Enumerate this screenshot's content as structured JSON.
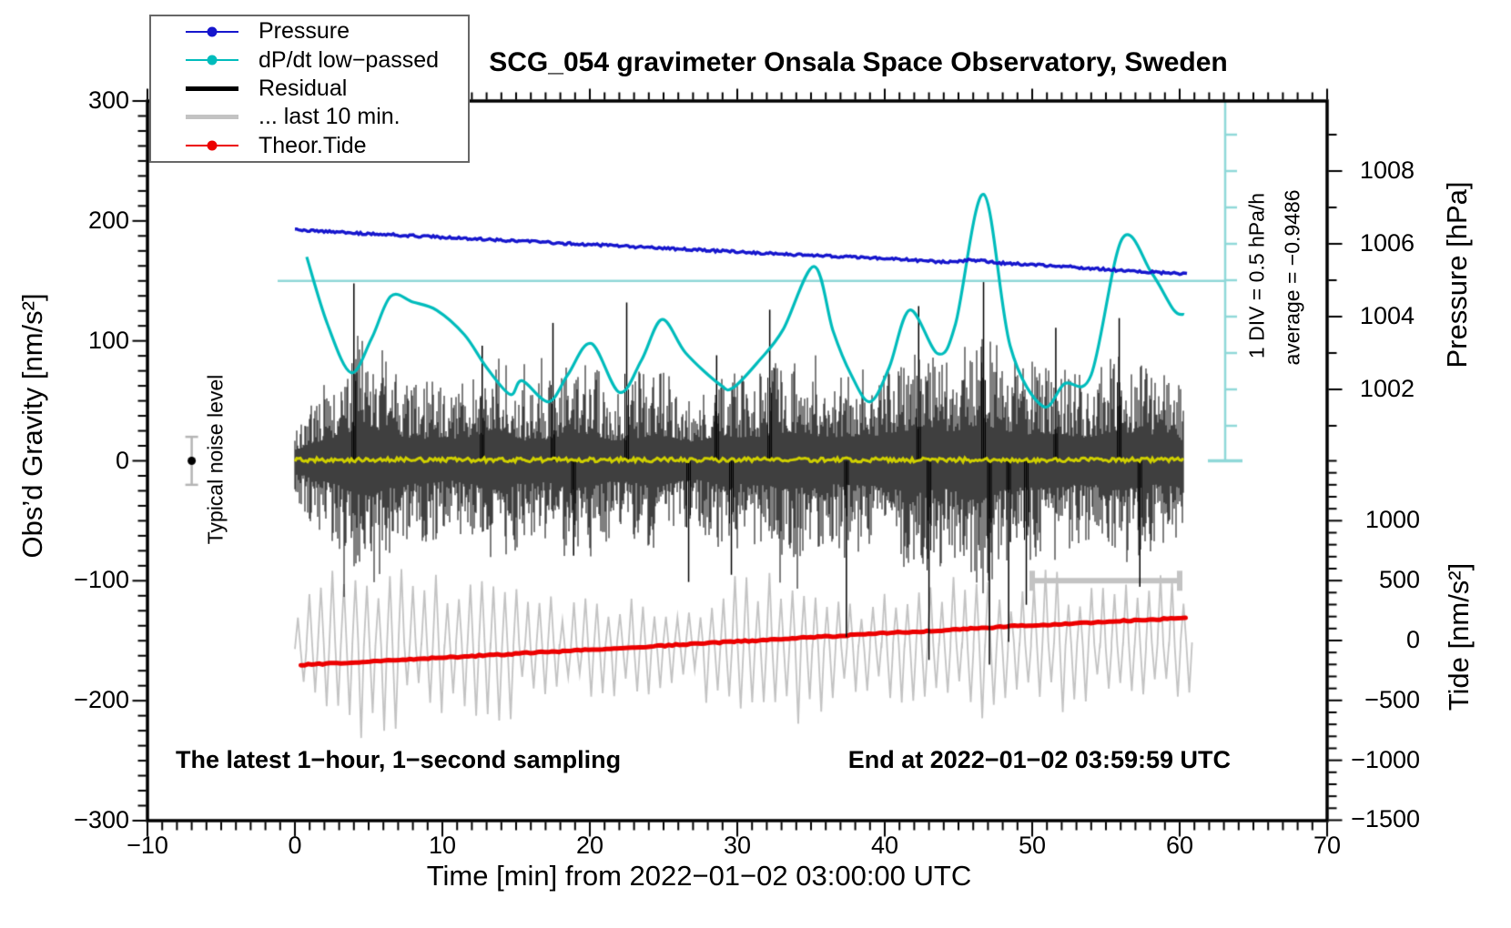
{
  "title": "SCG_054 gravimeter Onsala Space Observatory, Sweden",
  "axes": {
    "x": {
      "label": "Time [min] from 2022−01−02 03:00:00 UTC",
      "range": [
        -10,
        70
      ],
      "tick_values": [
        -10,
        0,
        10,
        20,
        30,
        40,
        50,
        60,
        70
      ],
      "tick_labels": [
        "−10",
        "0",
        "10",
        "20",
        "30",
        "40",
        "50",
        "60",
        "70"
      ],
      "minor_step": 1
    },
    "gravity": {
      "label": "Obs’d Gravity [nm/s²]",
      "range": [
        -300,
        300
      ],
      "tick_values": [
        300,
        200,
        100,
        0,
        -100,
        -200,
        -300
      ],
      "tick_labels": [
        "300",
        "200",
        "100",
        "0",
        "−100",
        "−200",
        "−300"
      ],
      "minor_step": 12.5
    },
    "pressure": {
      "label": "Pressure [hPa]",
      "tick_values": [
        1008,
        1006,
        1004,
        1002
      ],
      "tick_labels": [
        "1008",
        "1006",
        "1004",
        "1002"
      ],
      "minor_step": 1
    },
    "tide": {
      "label": "Tide [nm/s²]",
      "tick_values": [
        1000,
        500,
        0,
        -500,
        -1000,
        -1500
      ],
      "tick_labels": [
        "1000",
        "500",
        "0",
        "−500",
        "−1000",
        "−1500"
      ],
      "minor_step": 100
    }
  },
  "annotations": {
    "noise_label": "Typical noise level",
    "div_label": "1 DIV = 0.5 hPa/h",
    "average_label": "average = −0.9486",
    "bottom_left": "The latest 1−hour, 1−second sampling",
    "bottom_right": "End at 2022−01−02 03:59:59 UTC"
  },
  "legend": {
    "items": [
      {
        "label": "Pressure",
        "color": "#1616cd",
        "lw": 2.5,
        "marker": true
      },
      {
        "label": "dP/dt low−passed",
        "color": "#00bcbc",
        "lw": 2.5,
        "marker": true
      },
      {
        "label": "Residual",
        "color": "#000000",
        "lw": 5,
        "marker": false
      },
      {
        "label": "... last 10 min.",
        "color": "#c3c3c3",
        "lw": 5,
        "marker": false
      },
      {
        "label": "Theor.Tide",
        "color": "#ec0000",
        "lw": 2.5,
        "marker": true
      }
    ]
  },
  "colors": {
    "pressure": "#1616cd",
    "dpdt": "#00bcbc",
    "dpdt_ref": "#8fd8d8",
    "residual": "#000000",
    "last10": "#c3c3c3",
    "tide": "#ec0000",
    "lowpass": "#cfcf00",
    "errorbar": "#b5b5b5",
    "frame": "#000000"
  },
  "chart_data": {
    "type": "line",
    "x_unit": "min",
    "x_range": [
      -10,
      70
    ],
    "data_span_min": [
      0,
      60
    ],
    "noise_seed": 7,
    "pressure_hpa": {
      "x": [
        0,
        5,
        10,
        15,
        20,
        25,
        30,
        35,
        40,
        44,
        46,
        48,
        52,
        56,
        60
      ],
      "y": [
        1006.38,
        1006.28,
        1006.18,
        1006.08,
        1005.98,
        1005.88,
        1005.78,
        1005.68,
        1005.6,
        1005.5,
        1005.56,
        1005.47,
        1005.38,
        1005.27,
        1005.18
      ]
    },
    "dpdt_hpa_per_h": {
      "x": [
        0.8,
        2.2,
        3.8,
        5.2,
        6.5,
        8,
        9.6,
        11.5,
        13,
        14.6,
        15.4,
        17.2,
        18.5,
        20.1,
        22,
        23.5,
        24.9,
        26.5,
        28.8,
        29.7,
        31.5,
        33.1,
        35.2,
        36.5,
        37.7,
        39,
        40.3,
        41.7,
        43.6,
        44.8,
        46.7,
        48.5,
        50.7,
        52.2,
        54,
        56.1,
        58.1,
        59.6,
        60.3
      ],
      "y": [
        0.32,
        -0.6,
        -1.27,
        -0.8,
        -0.22,
        -0.3,
        -0.41,
        -0.75,
        -1.2,
        -1.57,
        -1.38,
        -1.67,
        -1.3,
        -0.87,
        -1.54,
        -1.1,
        -0.54,
        -1.0,
        -1.43,
        -1.48,
        -1.1,
        -0.68,
        0.19,
        -0.7,
        -1.29,
        -1.67,
        -1.2,
        -0.41,
        -1.01,
        -0.6,
        1.18,
        -0.9,
        -1.73,
        -1.42,
        -1.3,
        0.57,
        0.1,
        -0.41,
        -0.47
      ],
      "ref_level_on_gravity_axis": 150,
      "div_value_hpa_per_h": 0.5,
      "average_hpa_per_h": -0.9486
    },
    "theor_tide_nm_s2": {
      "x": [
        0.4,
        10,
        20,
        30,
        40,
        50,
        60.5
      ],
      "y": [
        -205,
        -143,
        -77,
        -8,
        60,
        127,
        190
      ]
    },
    "residual_nm_s2": {
      "mean": 0,
      "envelope": [
        [
          0,
          28
        ],
        [
          1,
          50
        ],
        [
          2,
          60
        ],
        [
          3.5,
          80
        ],
        [
          4.5,
          105
        ],
        [
          5.5,
          95
        ],
        [
          7,
          70
        ],
        [
          9,
          65
        ],
        [
          11,
          58
        ],
        [
          12.5,
          75
        ],
        [
          14,
          90
        ],
        [
          15.5,
          60
        ],
        [
          17,
          62
        ],
        [
          18.5,
          80
        ],
        [
          20,
          78
        ],
        [
          21.5,
          60
        ],
        [
          23,
          62
        ],
        [
          24.5,
          80
        ],
        [
          26,
          60
        ],
        [
          27.5,
          55
        ],
        [
          29,
          75
        ],
        [
          30.5,
          68
        ],
        [
          32,
          72
        ],
        [
          33.5,
          85
        ],
        [
          35,
          75
        ],
        [
          36.5,
          70
        ],
        [
          38,
          72
        ],
        [
          39.5,
          75
        ],
        [
          41,
          88
        ],
        [
          42.5,
          92
        ],
        [
          44,
          82
        ],
        [
          45.5,
          95
        ],
        [
          46.8,
          110
        ],
        [
          48,
          85
        ],
        [
          49.5,
          78
        ],
        [
          51,
          82
        ],
        [
          52.5,
          72
        ],
        [
          54,
          68
        ],
        [
          55.5,
          88
        ],
        [
          57,
          78
        ],
        [
          58.5,
          70
        ],
        [
          60,
          62
        ]
      ],
      "spikes": [
        [
          4.0,
          148
        ],
        [
          12.7,
          96
        ],
        [
          17.5,
          115
        ],
        [
          18.9,
          -79
        ],
        [
          22.5,
          132
        ],
        [
          26.7,
          -101
        ],
        [
          28.6,
          88
        ],
        [
          29.6,
          -95
        ],
        [
          32.2,
          126
        ],
        [
          37.4,
          -147
        ],
        [
          42.3,
          129
        ],
        [
          43.0,
          -166
        ],
        [
          46.7,
          149
        ],
        [
          47.1,
          -170
        ],
        [
          48.4,
          -151
        ],
        [
          49.6,
          -120
        ],
        [
          51.6,
          111
        ],
        [
          55.9,
          119
        ],
        [
          57.3,
          -105
        ]
      ]
    },
    "residual_lowpass_nm_s2": {
      "level": 0,
      "jitter": 3
    },
    "last10_trace": {
      "center_nm_s2": -154,
      "period_min": 0.78,
      "envelope": [
        [
          0,
          45
        ],
        [
          2,
          55
        ],
        [
          4,
          75
        ],
        [
          5,
          80
        ],
        [
          6,
          65
        ],
        [
          8,
          60
        ],
        [
          10,
          62
        ],
        [
          12,
          55
        ],
        [
          14,
          58
        ],
        [
          16,
          40
        ],
        [
          18,
          42
        ],
        [
          20,
          40
        ],
        [
          22,
          38
        ],
        [
          24,
          40
        ],
        [
          26,
          35
        ],
        [
          28,
          45
        ],
        [
          30,
          60
        ],
        [
          31,
          68
        ],
        [
          32,
          64
        ],
        [
          33,
          56
        ],
        [
          34,
          60
        ],
        [
          35,
          52
        ],
        [
          36,
          45
        ],
        [
          38,
          38
        ],
        [
          40,
          42
        ],
        [
          42,
          48
        ],
        [
          44,
          45
        ],
        [
          45,
          52
        ],
        [
          46,
          62
        ],
        [
          47,
          55
        ],
        [
          48,
          38
        ],
        [
          50,
          45
        ],
        [
          51,
          55
        ],
        [
          52,
          62
        ],
        [
          53,
          52
        ],
        [
          54,
          45
        ],
        [
          55,
          48
        ],
        [
          56,
          58
        ],
        [
          57,
          52
        ],
        [
          58,
          45
        ],
        [
          59,
          55
        ],
        [
          60,
          50
        ]
      ]
    },
    "last10_bar": {
      "from_min": 50,
      "to_min": 60,
      "gravity_level": -100
    },
    "noise_marker": {
      "x_min": -7,
      "value": 0,
      "error": 20
    }
  }
}
